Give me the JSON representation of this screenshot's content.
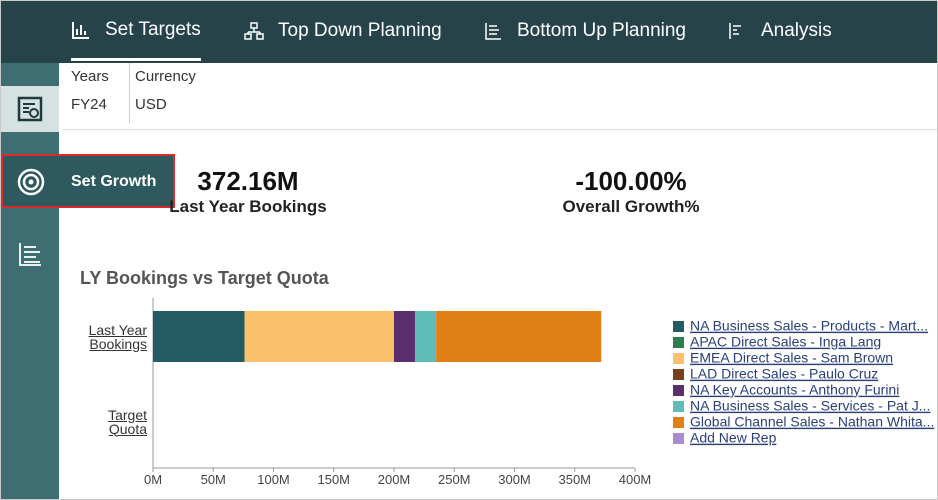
{
  "nav": [
    "Set Targets",
    "Top Down Planning",
    "Bottom Up Planning",
    "Analysis"
  ],
  "sidebar": {
    "tooltip": "Set Growth"
  },
  "pov": [
    {
      "header": "Years",
      "value": "FY24"
    },
    {
      "header": "Currency",
      "value": "USD"
    }
  ],
  "kpis": [
    {
      "value": "372.16M",
      "label": "Last Year Bookings"
    },
    {
      "value": "-100.00%",
      "label": "Overall Growth%"
    }
  ],
  "chart_data": {
    "type": "hbar-stacked",
    "title": "LY Bookings vs Target Quota",
    "categories": [
      "Last Year Bookings",
      "Target Quota"
    ],
    "xlim": [
      0,
      400
    ],
    "xticks": [
      {
        "value": 0,
        "label": "0M"
      },
      {
        "value": 50,
        "label": "50M"
      },
      {
        "value": 100,
        "label": "100M"
      },
      {
        "value": 150,
        "label": "150M"
      },
      {
        "value": 200,
        "label": "200M"
      },
      {
        "value": 250,
        "label": "250M"
      },
      {
        "value": 300,
        "label": "300M"
      },
      {
        "value": 350,
        "label": "350M"
      },
      {
        "value": 400,
        "label": "400M"
      }
    ],
    "legend": "right",
    "series": [
      {
        "name": "NA Business Sales - Products - Mart...",
        "color": "#245b63",
        "values": [
          76,
          0
        ]
      },
      {
        "name": "APAC Direct Sales - Inga Lang",
        "color": "#2e7d4f",
        "values": [
          0,
          0
        ]
      },
      {
        "name": "EMEA Direct Sales - Sam Brown",
        "color": "#fac06a",
        "values": [
          124,
          0
        ]
      },
      {
        "name": "LAD Direct Sales - Paulo Cruz",
        "color": "#7a3f1d",
        "values": [
          0,
          0
        ]
      },
      {
        "name": "NA Key Accounts - Anthony Furini",
        "color": "#5b2f6e",
        "values": [
          17.5,
          0
        ]
      },
      {
        "name": "NA Business Sales - Services - Pat J...",
        "color": "#5fbcb8",
        "values": [
          17.5,
          0
        ]
      },
      {
        "name": "Global Channel Sales - Nathan Whita...",
        "color": "#e07f14",
        "values": [
          137,
          0
        ]
      },
      {
        "name": "Add New Rep",
        "color": "#a88bd1",
        "values": [
          0,
          0
        ]
      }
    ]
  }
}
